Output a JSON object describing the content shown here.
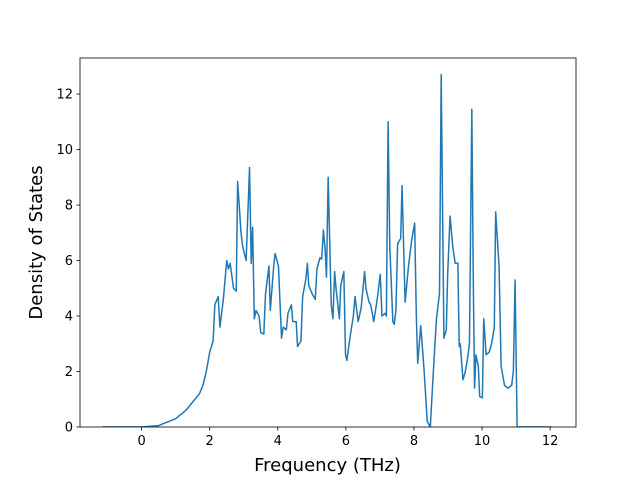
{
  "chart_data": {
    "type": "line",
    "xlabel": "Frequency (THz)",
    "ylabel": "Density of States",
    "color": "#1f77b4",
    "x": [
      -1.15,
      0,
      0.5,
      1.0,
      1.3,
      1.5,
      1.6,
      1.7,
      1.8,
      1.9,
      2.0,
      2.1,
      2.15,
      2.25,
      2.3,
      2.4,
      2.5,
      2.55,
      2.6,
      2.7,
      2.78,
      2.8,
      2.82,
      2.92,
      2.97,
      3.07,
      3.17,
      3.22,
      3.26,
      3.31,
      3.36,
      3.45,
      3.5,
      3.59,
      3.64,
      3.74,
      3.78,
      3.83,
      3.88,
      3.92,
      4.02,
      4.11,
      4.16,
      4.25,
      4.3,
      4.4,
      4.44,
      4.54,
      4.58,
      4.68,
      4.73,
      4.82,
      4.87,
      4.91,
      5.01,
      5.1,
      5.15,
      5.24,
      5.29,
      5.34,
      5.39,
      5.43,
      5.48,
      5.57,
      5.62,
      5.67,
      5.71,
      5.81,
      5.85,
      5.94,
      5.99,
      6.03,
      6.13,
      6.22,
      6.27,
      6.36,
      6.45,
      6.55,
      6.59,
      6.68,
      6.73,
      6.82,
      6.92,
      7.01,
      7.06,
      7.15,
      7.19,
      7.24,
      7.29,
      7.38,
      7.42,
      7.47,
      7.52,
      7.61,
      7.65,
      7.74,
      7.84,
      7.93,
      8.02,
      8.07,
      8.11,
      8.2,
      8.3,
      8.39,
      8.48,
      8.57,
      8.66,
      8.75,
      8.8,
      8.88,
      8.95,
      8.99,
      9.06,
      9.14,
      9.21,
      9.29,
      9.33,
      9.36,
      9.44,
      9.51,
      9.59,
      9.63,
      9.7,
      9.74,
      9.78,
      9.82,
      9.89,
      9.93,
      10.01,
      10.05,
      10.12,
      10.21,
      10.28,
      10.36,
      10.4,
      10.5,
      10.56,
      10.66,
      10.76,
      10.87,
      10.92,
      10.97,
      11.03,
      12.05
    ],
    "values": [
      0,
      0,
      0.05,
      0.3,
      0.6,
      0.9,
      1.05,
      1.2,
      1.5,
      2.0,
      2.7,
      3.1,
      4.4,
      4.7,
      3.6,
      4.6,
      6.0,
      5.7,
      5.9,
      5.0,
      4.9,
      7.0,
      8.85,
      7.0,
      6.5,
      6.0,
      9.35,
      5.9,
      7.2,
      3.9,
      4.2,
      4.0,
      3.4,
      3.35,
      4.8,
      5.8,
      4.2,
      5.0,
      5.8,
      6.25,
      5.8,
      3.2,
      3.6,
      3.5,
      4.1,
      4.4,
      3.8,
      3.8,
      2.9,
      3.1,
      4.7,
      5.3,
      5.9,
      5.1,
      4.8,
      4.6,
      5.7,
      6.1,
      6.05,
      7.1,
      6.4,
      5.4,
      9.0,
      4.4,
      3.9,
      5.6,
      5.0,
      3.9,
      5.1,
      5.6,
      2.6,
      2.4,
      3.3,
      4.0,
      4.7,
      3.8,
      4.3,
      5.6,
      5.0,
      4.5,
      4.4,
      3.8,
      4.6,
      5.5,
      4.0,
      4.1,
      4.0,
      11.0,
      6.5,
      3.8,
      3.7,
      4.2,
      6.6,
      6.8,
      8.7,
      4.5,
      5.8,
      6.7,
      7.35,
      4.0,
      2.3,
      3.65,
      2.0,
      0.2,
      0,
      2.0,
      3.9,
      4.8,
      12.7,
      3.2,
      3.5,
      5.5,
      7.6,
      6.5,
      5.9,
      5.9,
      2.9,
      3.0,
      1.7,
      2.0,
      2.6,
      3.0,
      11.45,
      5.6,
      1.4,
      2.6,
      2.2,
      1.1,
      1.05,
      3.9,
      2.6,
      2.7,
      3.0,
      3.6,
      7.75,
      5.8,
      2.2,
      1.5,
      1.4,
      1.5,
      2.0,
      5.3,
      0,
      0
    ],
    "xlim": [
      -1.81,
      12.76
    ],
    "ylim": [
      0,
      13.3
    ],
    "xticks": [
      0,
      2,
      4,
      6,
      8,
      10,
      12
    ],
    "yticks": [
      0,
      2,
      4,
      6,
      8,
      10,
      12
    ]
  }
}
